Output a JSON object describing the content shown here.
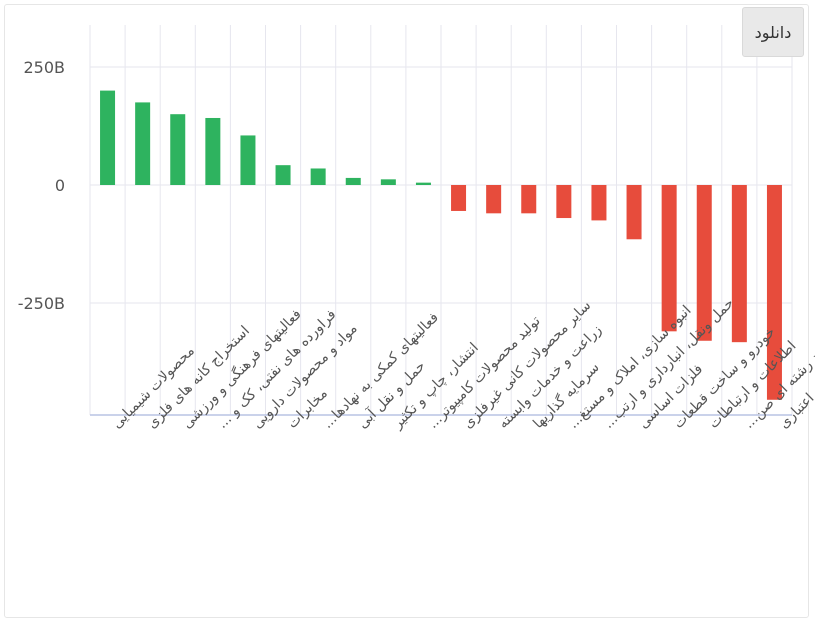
{
  "toolbar": {
    "download_label": "دانلود"
  },
  "colors": {
    "positive": "#2eb35f",
    "negative": "#e74c3c",
    "grid": "#e6e6ee",
    "axis": "#b9c3e3"
  },
  "chart_data": {
    "type": "bar",
    "title": "",
    "xlabel": "",
    "ylabel": "",
    "ylim": [
      -450,
      340
    ],
    "grid": true,
    "legend": "none",
    "yticks": [
      {
        "value": 250,
        "label": "250B"
      },
      {
        "value": 0,
        "label": "0"
      },
      {
        "value": -250,
        "label": "-250B"
      }
    ],
    "categories": [
      "محصولات شیمیایی",
      "استخراج کانه های فلزی",
      "فعالیتهای فرهنگی و ورزشی",
      "فراورده های نفتی، کک و ...",
      "مواد و محصولات دارویی",
      "مخابرات",
      "فعالیتهای کمکی به نهادها...",
      "حمل و نقل آبی",
      "انتشار، چاپ و تکثیر",
      "تولید محصولات کامپیوتر...",
      "سایر محصولات کانی غیرفلزی",
      "زراعت و خدمات وابسته",
      "سرمایه گذاریها",
      "انبوه سازی، املاک و مستغ...",
      "حمل ونقل، انبارداری و ارتب...",
      "فلزات اساسی",
      "خودرو و ساخت قطعات",
      "اطلاعات و ارتباطات",
      "شرکتهای چند رشته ای صن...",
      "بانکها و موسسات اعتباری"
    ],
    "values": [
      200,
      175,
      150,
      142,
      105,
      42,
      35,
      15,
      12,
      5,
      -55,
      -60,
      -60,
      -70,
      -75,
      -115,
      -310,
      -330,
      -333,
      -455
    ]
  }
}
